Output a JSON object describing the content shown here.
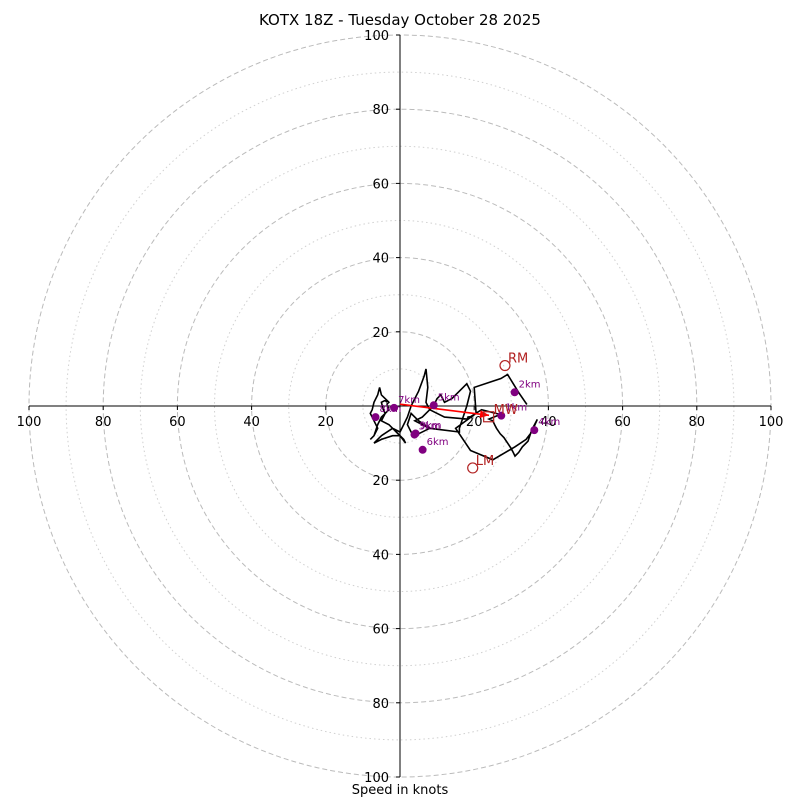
{
  "chart_data": {
    "type": "hodograph",
    "title": "KOTX 18Z - Tuesday October 28 2025",
    "xlabel": "Speed in knots",
    "range": 100,
    "ring_major": [
      20,
      40,
      60,
      80,
      100
    ],
    "ring_minor": [
      10,
      30,
      50,
      70,
      90
    ],
    "ticks_x": [
      {
        "value": -100,
        "label": "100"
      },
      {
        "value": -80,
        "label": "80"
      },
      {
        "value": -60,
        "label": "60"
      },
      {
        "value": -40,
        "label": "40"
      },
      {
        "value": -20,
        "label": "20"
      },
      {
        "value": 20,
        "label": "20"
      },
      {
        "value": 40,
        "label": "40"
      },
      {
        "value": 60,
        "label": "60"
      },
      {
        "value": 80,
        "label": "80"
      },
      {
        "value": 100,
        "label": "100"
      }
    ],
    "ticks_y": [
      {
        "value": 100,
        "label": "100"
      },
      {
        "value": 80,
        "label": "80"
      },
      {
        "value": 60,
        "label": "60"
      },
      {
        "value": 40,
        "label": "40"
      },
      {
        "value": 20,
        "label": "20"
      },
      {
        "value": -20,
        "label": "20"
      },
      {
        "value": -40,
        "label": "40"
      },
      {
        "value": -60,
        "label": "60"
      },
      {
        "value": -80,
        "label": "80"
      },
      {
        "value": -100,
        "label": "100"
      }
    ],
    "colors": {
      "trace": "#000000",
      "points": "#800080",
      "storm_motion": "#b22222",
      "shear_vector": "#ff0000",
      "rings": "#bbbbbb",
      "axes": "#000000"
    },
    "hodograph_trace": [
      [
        34.2,
        0.4
      ],
      [
        32,
        3.6
      ],
      [
        29,
        8.5
      ],
      [
        27.2,
        7.4
      ],
      [
        20,
        5
      ],
      [
        20.5,
        -2
      ],
      [
        15,
        -6
      ],
      [
        19,
        -12
      ],
      [
        25,
        -14.5
      ],
      [
        31,
        -11
      ],
      [
        34,
        -9
      ],
      [
        35.5,
        -7
      ],
      [
        37,
        -3.6
      ],
      [
        35.5,
        -6.5
      ],
      [
        34.5,
        -9.5
      ],
      [
        33,
        -11
      ],
      [
        32,
        -12.5
      ],
      [
        31,
        -13.5
      ],
      [
        30.5,
        -12.5
      ],
      [
        30,
        -11.5
      ],
      [
        29,
        -10
      ],
      [
        28,
        -8.5
      ],
      [
        27,
        -7.5
      ],
      [
        26,
        -6
      ],
      [
        25.5,
        -5
      ],
      [
        25,
        -4
      ],
      [
        24,
        -3.5
      ],
      [
        27,
        -2.3
      ],
      [
        22,
        -1
      ],
      [
        18,
        -3.5
      ],
      [
        12,
        -3
      ],
      [
        8,
        -1
      ],
      [
        6,
        -3
      ],
      [
        4,
        -4
      ],
      [
        6,
        -5
      ],
      [
        8,
        -6
      ],
      [
        4,
        -8
      ],
      [
        3,
        -7
      ],
      [
        2,
        -5
      ],
      [
        3,
        -2
      ],
      [
        5,
        -4
      ],
      [
        8,
        -6
      ],
      [
        16,
        -7
      ],
      [
        16,
        -6
      ],
      [
        18,
        0
      ],
      [
        19,
        4
      ],
      [
        18,
        6
      ],
      [
        17,
        5
      ],
      [
        14,
        2
      ],
      [
        12,
        1
      ],
      [
        11,
        3
      ],
      [
        10,
        2
      ],
      [
        9,
        0
      ],
      [
        8,
        -1
      ],
      [
        7,
        1
      ],
      [
        7.5,
        5
      ],
      [
        7,
        10
      ],
      [
        6.5,
        8
      ],
      [
        5,
        4
      ],
      [
        4,
        2
      ],
      [
        3,
        0
      ],
      [
        2,
        -3
      ],
      [
        1,
        -5
      ],
      [
        0,
        -7
      ],
      [
        -2,
        -6
      ],
      [
        -5,
        -8
      ],
      [
        -7,
        -10
      ],
      [
        -5,
        -9
      ],
      [
        -2,
        -8
      ],
      [
        0,
        -8
      ],
      [
        1.5,
        -10
      ],
      [
        1,
        -9
      ],
      [
        -1,
        -7
      ],
      [
        -3,
        -5
      ],
      [
        -5,
        -4
      ],
      [
        -4,
        -2
      ],
      [
        -3,
        -1
      ],
      [
        -3.5,
        0.5
      ],
      [
        -3,
        1
      ],
      [
        -5,
        3
      ],
      [
        -5.5,
        5
      ],
      [
        -6,
        3
      ],
      [
        -7,
        1
      ],
      [
        -7.5,
        -1
      ],
      [
        -8,
        -2
      ],
      [
        -7,
        -4
      ],
      [
        -6,
        -6
      ],
      [
        -7,
        -8
      ],
      [
        -8,
        -9
      ],
      [
        -7,
        -8
      ],
      [
        -6,
        -5
      ],
      [
        -5,
        -3
      ],
      [
        -4,
        -2
      ],
      [
        -4.5,
        -1
      ],
      [
        -5,
        1
      ],
      [
        -4,
        1.5
      ],
      [
        -3.5,
        1
      ]
    ],
    "height_points": [
      {
        "u": 30.9,
        "v": 3.7,
        "label": "2km"
      },
      {
        "u": 36.2,
        "v": -6.5,
        "label": "4km"
      },
      {
        "u": 9.1,
        "v": 0.2,
        "label": "5km"
      },
      {
        "u": 6.1,
        "v": -11.8,
        "label": "6km"
      },
      {
        "u": -1.6,
        "v": -0.5,
        "label": "7km"
      },
      {
        "u": -6.6,
        "v": -3,
        "label": "8km"
      },
      {
        "u": 4.2,
        "v": -7.4,
        "label": "9km"
      },
      {
        "u": 27.3,
        "v": -2.6,
        "label": "1km"
      },
      {
        "u": 3.9,
        "v": -7.7,
        "label": "3km"
      }
    ],
    "storm_motion": [
      {
        "u": 28.3,
        "v": 10.9,
        "label": "RM"
      },
      {
        "u": 19.6,
        "v": -16.7,
        "label": "LM"
      }
    ],
    "mean_wind": {
      "u": 23.9,
      "v": -2.9,
      "label": "MW"
    },
    "shear_vector": {
      "from_u": 0,
      "from_v": 0.5,
      "to_u": 24,
      "to_v": -2.5
    }
  }
}
